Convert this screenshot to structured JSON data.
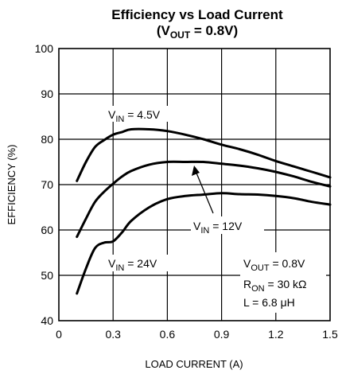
{
  "chart_data": {
    "type": "line",
    "title_line1": "Efficiency vs Load Current",
    "title_line2_prefix": "(V",
    "title_line2_sub": "OUT",
    "title_line2_suffix": " = 0.8V)",
    "xlabel": "LOAD CURRENT (A)",
    "ylabel": "EFFICIENCY (%)",
    "xlim": [
      0,
      1.5
    ],
    "ylim": [
      40,
      100
    ],
    "xticks": [
      0,
      0.3,
      0.6,
      0.9,
      1.2,
      1.5
    ],
    "xtick_labels": [
      "0",
      "0.3",
      "0.6",
      "0.9",
      "1.2",
      "1.5"
    ],
    "yticks": [
      40,
      50,
      60,
      70,
      80,
      90,
      100
    ],
    "ytick_labels": [
      "40",
      "50",
      "60",
      "70",
      "80",
      "90",
      "100"
    ],
    "grid": true,
    "series": [
      {
        "name": "VIN = 4.5V",
        "label_main": "V",
        "label_sub": "IN",
        "label_rest": " = 4.5V",
        "x": [
          0.1,
          0.15,
          0.2,
          0.25,
          0.3,
          0.35,
          0.4,
          0.5,
          0.6,
          0.7,
          0.8,
          0.9,
          1.0,
          1.1,
          1.2,
          1.3,
          1.4,
          1.5
        ],
        "y": [
          70.8,
          75.0,
          78.3,
          79.8,
          81.0,
          81.6,
          82.2,
          82.2,
          81.8,
          81.0,
          80.0,
          78.8,
          77.8,
          76.6,
          75.2,
          74.0,
          72.8,
          71.6
        ]
      },
      {
        "name": "VIN = 12V",
        "label_main": "V",
        "label_sub": "IN",
        "label_rest": " = 12V",
        "x": [
          0.1,
          0.15,
          0.2,
          0.25,
          0.3,
          0.35,
          0.4,
          0.5,
          0.6,
          0.7,
          0.8,
          0.9,
          1.0,
          1.1,
          1.2,
          1.3,
          1.4,
          1.5
        ],
        "y": [
          58.5,
          62.5,
          66.2,
          68.4,
          70.2,
          71.8,
          73.0,
          74.4,
          75.0,
          75.0,
          75.0,
          74.6,
          74.2,
          73.6,
          72.8,
          71.8,
          70.6,
          69.6
        ]
      },
      {
        "name": "VIN = 24V",
        "label_main": "V",
        "label_sub": "IN",
        "label_rest": " = 24V",
        "x": [
          0.1,
          0.15,
          0.2,
          0.25,
          0.3,
          0.35,
          0.4,
          0.5,
          0.6,
          0.7,
          0.8,
          0.9,
          1.0,
          1.1,
          1.2,
          1.3,
          1.4,
          1.5
        ],
        "y": [
          46.0,
          51.5,
          56.0,
          57.2,
          57.5,
          59.5,
          62.0,
          65.0,
          66.8,
          67.5,
          67.8,
          68.1,
          67.9,
          67.8,
          67.5,
          67.0,
          66.2,
          65.6
        ]
      }
    ],
    "annotations": {
      "vout_main": "V",
      "vout_sub": "OUT",
      "vout_rest": " = 0.8V",
      "ron_main": "R",
      "ron_sub": "ON",
      "ron_rest": " = 30 kΩ",
      "l_line": "L = 6.8 μH"
    }
  }
}
